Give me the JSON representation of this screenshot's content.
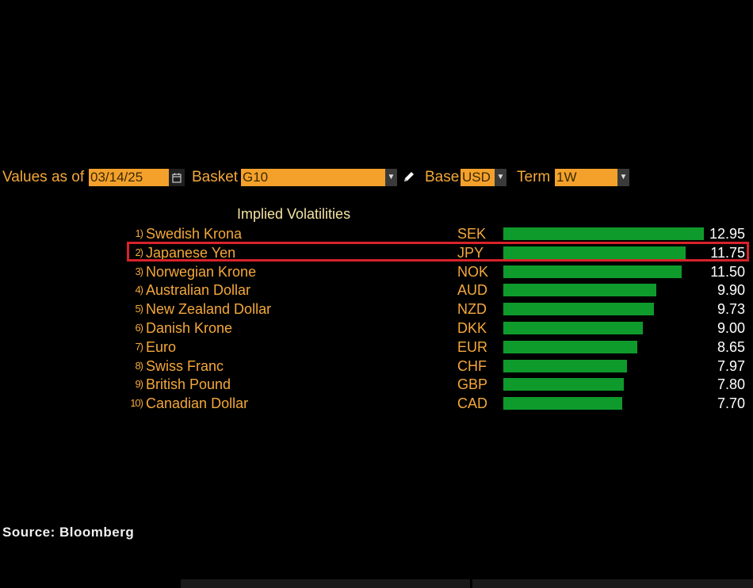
{
  "toolbar": {
    "values_as_of_label": "Values as of",
    "date_value": "03/14/25",
    "calendar_icon": "calendar-icon",
    "basket_label": "Basket",
    "basket_value": "G10",
    "base_label": "Base",
    "base_value": "USD",
    "term_label": "Term",
    "term_value": "1W",
    "field_color": "#f4a12c",
    "label_color": "#f4a83a"
  },
  "chart_data": {
    "type": "bar",
    "title": "Implied Volatilities",
    "orientation": "horizontal",
    "bar_color": "#0f9a2c",
    "highlight_color": "#d8222a",
    "highlighted_rank": "2)",
    "xlim": [
      0,
      12.95
    ],
    "rows": [
      {
        "rank": "1)",
        "name": "Swedish Krona",
        "code": "SEK",
        "value": 12.95,
        "label": "12.95"
      },
      {
        "rank": "2)",
        "name": "Japanese Yen",
        "code": "JPY",
        "value": 11.75,
        "label": "11.75"
      },
      {
        "rank": "3)",
        "name": "Norwegian Krone",
        "code": "NOK",
        "value": 11.5,
        "label": "11.50"
      },
      {
        "rank": "4)",
        "name": "Australian Dollar",
        "code": "AUD",
        "value": 9.9,
        "label": "9.90"
      },
      {
        "rank": "5)",
        "name": "New Zealand Dollar",
        "code": "NZD",
        "value": 9.73,
        "label": "9.73"
      },
      {
        "rank": "6)",
        "name": "Danish Krone",
        "code": "DKK",
        "value": 9.0,
        "label": "9.00"
      },
      {
        "rank": "7)",
        "name": "Euro",
        "code": "EUR",
        "value": 8.65,
        "label": "8.65"
      },
      {
        "rank": "8)",
        "name": "Swiss Franc",
        "code": "CHF",
        "value": 7.97,
        "label": "7.97"
      },
      {
        "rank": "9)",
        "name": "British Pound",
        "code": "GBP",
        "value": 7.8,
        "label": "7.80"
      },
      {
        "rank": "10)",
        "name": "Canadian Dollar",
        "code": "CAD",
        "value": 7.7,
        "label": "7.70"
      }
    ]
  },
  "footer": {
    "source": "Source: Bloomberg"
  }
}
